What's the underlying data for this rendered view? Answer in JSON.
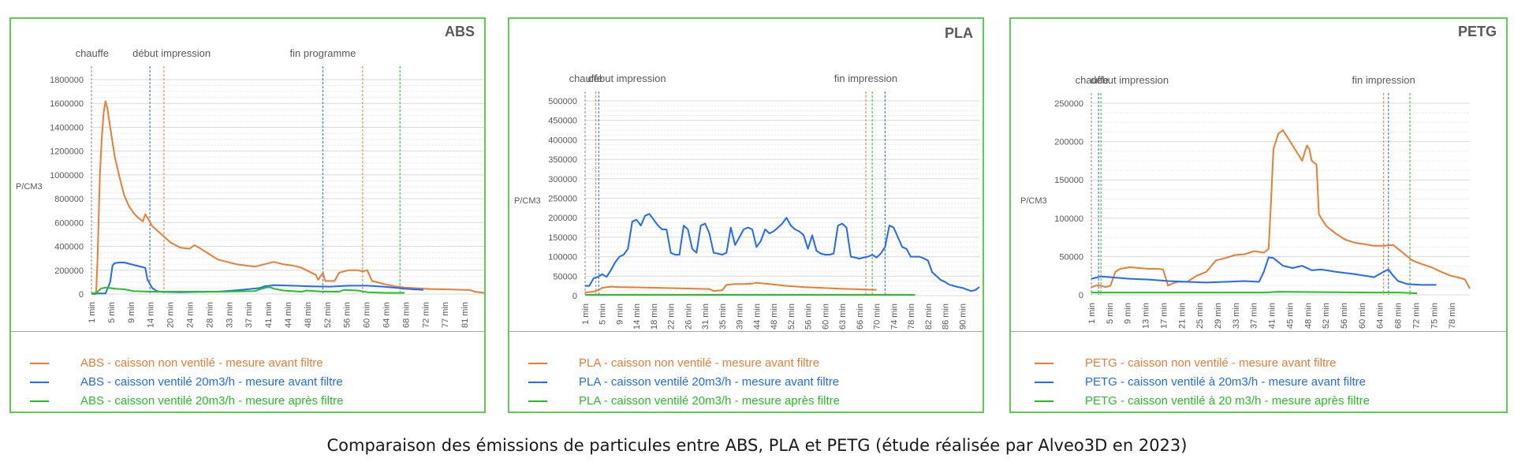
{
  "caption": "Comparaison des émissions de particules entre ABS, PLA et PETG (étude réalisée par Alveo3D en 2023)",
  "colors": {
    "orange": "#ED7D31",
    "blue": "#1F6BFF",
    "green": "#22C422",
    "grey": "#8c8c8c",
    "border": "#5ad14e"
  },
  "panels": [
    {
      "title": "ABS",
      "ylabel": "P/CM3",
      "annotations": [
        "chauffe",
        "début impression",
        "fin programme"
      ],
      "legend": [
        "ABS - caisson non ventilé - mesure avant filtre",
        "ABS - caisson ventilé 20m3/h - mesure avant filtre",
        "ABS - caisson ventilé 20m3/h - mesure après filtre"
      ]
    },
    {
      "title": "PLA",
      "ylabel": "P/CM3",
      "annotations": [
        "chauffe",
        "début impression",
        "fin impression"
      ],
      "legend": [
        "PLA - caisson non ventilé - mesure avant filtre",
        "PLA - caisson ventilé 20m3/h - mesure avant filtre",
        "PLA - caisson ventilé 20m3/h - mesure après filtre"
      ]
    },
    {
      "title": "PETG",
      "ylabel": "P/CM3",
      "annotations": [
        "chauffe",
        "début impression",
        "fin impression"
      ],
      "legend": [
        "PETG - caisson non ventilé - mesure avant filtre",
        "PETG - caisson ventilé à 20m3/h - mesure avant filtre",
        "PETG - caisson ventilé à 20 m3/h - mesure après filtre"
      ]
    }
  ],
  "chart_data": [
    {
      "type": "line",
      "title": "ABS",
      "xlabel": "",
      "ylabel": "P/CM3",
      "ylim": [
        0,
        1800000
      ],
      "yticks": [
        0,
        200000,
        400000,
        600000,
        800000,
        1000000,
        1200000,
        1400000,
        1600000,
        1800000
      ],
      "xticks": [
        "1 min",
        "5 min",
        "9 min",
        "14 min",
        "20 min",
        "24 min",
        "28 min",
        "33 min",
        "37 min",
        "41 min",
        "44 min",
        "48 min",
        "52 min",
        "56 min",
        "60 min",
        "64 min",
        "68 min",
        "72 min",
        "77 min",
        "81 min"
      ],
      "x_range_min": [
        1,
        85
      ],
      "grid": true,
      "legend_position": "bottom",
      "annotations": [
        {
          "label": "chauffe",
          "x": 1,
          "color": "#8c8c8c"
        },
        {
          "label": "début impression",
          "x": 13.5,
          "color": "#1F6BFF"
        },
        {
          "label": "début impression",
          "x": 16.5,
          "color": "#ED7D31"
        },
        {
          "label": "fin programme",
          "x": 50.5,
          "color": "#1F6BFF"
        },
        {
          "label": "fin programme",
          "x": 59,
          "color": "#ED7D31"
        },
        {
          "label": "fin programme",
          "x": 67,
          "color": "#22C422"
        }
      ],
      "series": [
        {
          "name": "ABS - caisson non ventilé - mesure avant filtre",
          "color": "#ED7D31",
          "x": [
            1,
            2,
            2.3,
            2.8,
            3.2,
            3.6,
            4,
            4.4,
            5,
            6,
            7,
            8,
            9,
            10,
            11,
            12,
            12.5,
            13,
            14,
            16,
            18,
            20,
            22,
            23,
            24,
            26,
            28,
            30,
            32,
            34,
            36,
            38,
            40,
            41,
            42,
            44,
            46,
            48,
            49,
            49.5,
            50.5,
            51,
            53,
            54,
            56,
            58,
            59,
            60,
            61,
            62,
            64,
            66,
            68,
            70,
            72,
            74,
            76,
            78,
            80,
            82,
            83,
            85
          ],
          "values": [
            0,
            0,
            300000,
            1000000,
            1300000,
            1520000,
            1620000,
            1560000,
            1400000,
            1150000,
            980000,
            830000,
            740000,
            680000,
            640000,
            610000,
            670000,
            640000,
            570000,
            500000,
            430000,
            390000,
            380000,
            410000,
            390000,
            340000,
            290000,
            270000,
            250000,
            240000,
            230000,
            250000,
            270000,
            260000,
            250000,
            240000,
            220000,
            180000,
            160000,
            120000,
            180000,
            110000,
            110000,
            180000,
            200000,
            200000,
            190000,
            200000,
            110000,
            100000,
            80000,
            65000,
            55000,
            50000,
            45000,
            42000,
            40000,
            38000,
            36000,
            34000,
            20000,
            10000
          ]
        },
        {
          "name": "ABS - caisson ventilé 20m3/h - mesure avant filtre",
          "color": "#1F6BFF",
          "x": [
            1,
            4,
            5,
            5.5,
            6,
            7,
            8,
            9,
            10,
            11,
            12,
            12.5,
            13,
            14,
            15,
            16,
            20,
            28,
            33,
            37,
            38,
            40,
            44,
            48,
            52,
            56,
            60,
            64,
            68,
            72
          ],
          "values": [
            5000,
            5000,
            100000,
            240000,
            260000,
            265000,
            265000,
            255000,
            245000,
            235000,
            225000,
            220000,
            120000,
            50000,
            25000,
            18000,
            15000,
            20000,
            35000,
            50000,
            65000,
            75000,
            70000,
            65000,
            62000,
            70000,
            70000,
            60000,
            45000,
            35000
          ]
        },
        {
          "name": "ABS - caisson ventilé 20m3/h - mesure après filtre",
          "color": "#22C422",
          "x": [
            1,
            2,
            3,
            4,
            5,
            6,
            8,
            10,
            14,
            20,
            28,
            36,
            37,
            38,
            39,
            40,
            42,
            46,
            47,
            50,
            54,
            55,
            58,
            60,
            64,
            68
          ],
          "values": [
            5000,
            10000,
            45000,
            55000,
            50000,
            45000,
            40000,
            25000,
            20000,
            20000,
            20000,
            25000,
            40000,
            50000,
            60000,
            45000,
            30000,
            20000,
            30000,
            22000,
            20000,
            35000,
            30000,
            15000,
            10000,
            10000
          ]
        }
      ]
    },
    {
      "type": "line",
      "title": "PLA",
      "xlabel": "",
      "ylabel": "P/CM3",
      "ylim": [
        0,
        500000
      ],
      "yticks": [
        0,
        50000,
        100000,
        150000,
        200000,
        250000,
        300000,
        350000,
        400000,
        450000,
        500000
      ],
      "xticks": [
        "1 min",
        "5 min",
        "9 min",
        "14 min",
        "18 min",
        "22 min",
        "26 min",
        "31 min",
        "35 min",
        "39 min",
        "44 min",
        "48 min",
        "52 min",
        "56 min",
        "60 min",
        "63 min",
        "66 min",
        "70 min",
        "74 min",
        "78 min",
        "82 min",
        "86 min",
        "90 min"
      ],
      "x_range_min": [
        1,
        93
      ],
      "grid": true,
      "legend_position": "bottom",
      "annotations": [
        {
          "label": "chauffe",
          "x": 1,
          "color": "#8c8c8c"
        },
        {
          "label": "début impression",
          "x": 3.5,
          "color": "#ED7D31"
        },
        {
          "label": "début impression",
          "x": 4.2,
          "color": "#1F6BFF"
        },
        {
          "label": "fin impression",
          "x": 66.5,
          "color": "#ED7D31"
        },
        {
          "label": "fin impression",
          "x": 68,
          "color": "#22C422"
        },
        {
          "label": "fin impression",
          "x": 71,
          "color": "#1F6BFF"
        }
      ],
      "series": [
        {
          "name": "PLA - caisson non ventilé - mesure avant filtre",
          "color": "#ED7D31",
          "x": [
            1,
            3,
            4,
            5,
            7,
            9,
            14,
            18,
            22,
            26,
            30,
            31,
            33,
            34,
            36,
            38,
            40,
            41,
            44,
            48,
            52,
            56,
            60,
            63,
            66,
            69
          ],
          "values": [
            8000,
            10000,
            14000,
            20000,
            23000,
            22000,
            21000,
            20000,
            19000,
            18000,
            17000,
            12000,
            14000,
            28000,
            30000,
            30000,
            31000,
            33000,
            30000,
            25000,
            22000,
            20000,
            18000,
            17000,
            16000,
            15000
          ]
        },
        {
          "name": "PLA - caisson ventilé 20m3/h - mesure avant filtre",
          "color": "#1F6BFF",
          "x": [
            1,
            2,
            3,
            4,
            5,
            6,
            7,
            8,
            9,
            10,
            11,
            12,
            13,
            14,
            15,
            16,
            17,
            18,
            19,
            20,
            21,
            22,
            23,
            24,
            25,
            26,
            27,
            28,
            29,
            30,
            31,
            32,
            33,
            34,
            35,
            36,
            37,
            38,
            39,
            40,
            41,
            42,
            43,
            44,
            45,
            46,
            47,
            48,
            49,
            50,
            51,
            52,
            53,
            54,
            55,
            56,
            57,
            58,
            59,
            60,
            61,
            62,
            63,
            64,
            65,
            66,
            67,
            68,
            69,
            70,
            71,
            72,
            73,
            74,
            75,
            76,
            77,
            78,
            79,
            80,
            81,
            82,
            83,
            84,
            85,
            86,
            87,
            88,
            89,
            90,
            91,
            92,
            93
          ],
          "values": [
            25000,
            25000,
            45000,
            48000,
            55000,
            48000,
            65000,
            85000,
            100000,
            105000,
            120000,
            190000,
            195000,
            180000,
            205000,
            210000,
            195000,
            180000,
            170000,
            170000,
            110000,
            105000,
            105000,
            180000,
            170000,
            120000,
            110000,
            180000,
            185000,
            160000,
            110000,
            108000,
            105000,
            110000,
            175000,
            130000,
            150000,
            170000,
            175000,
            170000,
            125000,
            140000,
            170000,
            160000,
            165000,
            175000,
            185000,
            200000,
            180000,
            170000,
            165000,
            155000,
            120000,
            155000,
            115000,
            108000,
            105000,
            105000,
            108000,
            180000,
            185000,
            175000,
            100000,
            98000,
            95000,
            98000,
            100000,
            105000,
            98000,
            108000,
            125000,
            180000,
            175000,
            150000,
            125000,
            120000,
            100000,
            100000,
            100000,
            96000,
            90000,
            60000,
            50000,
            40000,
            35000,
            28000,
            25000,
            22000,
            20000,
            16000,
            12000,
            14000,
            22000
          ]
        },
        {
          "name": "PLA - caisson ventilé 20m3/h - mesure après filtre",
          "color": "#22C422",
          "x": [
            1,
            10,
            20,
            30,
            40,
            50,
            60,
            70,
            78
          ],
          "values": [
            2000,
            2000,
            2000,
            2000,
            2000,
            2000,
            2000,
            2000,
            2000
          ]
        }
      ]
    },
    {
      "type": "line",
      "title": "PETG",
      "xlabel": "",
      "ylabel": "P/CM3",
      "ylim": [
        0,
        250000
      ],
      "yticks": [
        0,
        50000,
        100000,
        150000,
        200000,
        250000
      ],
      "xticks": [
        "1 min",
        "5 min",
        "9 min",
        "13 min",
        "17 min",
        "21 min",
        "25 min",
        "29 min",
        "33 min",
        "37 min",
        "41 min",
        "45 min",
        "48 min",
        "52 min",
        "56 min",
        "60 min",
        "64 min",
        "68 min",
        "72 min",
        "75 min",
        "78 min"
      ],
      "x_range_min": [
        1,
        80
      ],
      "grid": true,
      "legend_position": "bottom",
      "annotations": [
        {
          "label": "chauffe",
          "x": 1,
          "color": "#8c8c8c"
        },
        {
          "label": "début impression",
          "x": 2.5,
          "color": "#1F6BFF"
        },
        {
          "label": "début impression",
          "x": 3,
          "color": "#22C422"
        },
        {
          "label": "fin impression",
          "x": 62,
          "color": "#ED7D31"
        },
        {
          "label": "fin impression",
          "x": 63,
          "color": "#1F6BFF"
        },
        {
          "label": "fin impression",
          "x": 67.5,
          "color": "#22C422"
        }
      ],
      "series": [
        {
          "name": "PETG - caisson non ventilé - mesure avant filtre",
          "color": "#ED7D31",
          "x": [
            1,
            2,
            3,
            4,
            5,
            6,
            7,
            9,
            11,
            13,
            15,
            16,
            17,
            18,
            19,
            21,
            23,
            25,
            27,
            29,
            31,
            33,
            35,
            37,
            38,
            38.5,
            39,
            40,
            41,
            42,
            43,
            44,
            45,
            46,
            46.5,
            47,
            48,
            48.5,
            49,
            50,
            52,
            54,
            56,
            58,
            60,
            62,
            64,
            66,
            68,
            70,
            72,
            74,
            76,
            78,
            79,
            80
          ],
          "values": [
            10000,
            12000,
            12000,
            10000,
            12000,
            30000,
            34000,
            36000,
            35000,
            34000,
            34000,
            33000,
            12000,
            15000,
            17000,
            17000,
            25000,
            30000,
            45000,
            48000,
            52000,
            53000,
            57000,
            55000,
            60000,
            120000,
            190000,
            210000,
            215000,
            205000,
            195000,
            185000,
            175000,
            195000,
            190000,
            175000,
            170000,
            105000,
            100000,
            90000,
            80000,
            72000,
            68000,
            66000,
            64000,
            64000,
            65000,
            55000,
            45000,
            40000,
            36000,
            30000,
            25000,
            22000,
            20000,
            8000
          ]
        },
        {
          "name": "PETG - caisson ventilé à 20m3/h - mesure avant filtre",
          "color": "#1F6BFF",
          "x": [
            1,
            3,
            5,
            9,
            13,
            17,
            21,
            25,
            29,
            33,
            36,
            37,
            38,
            39,
            41,
            43,
            45,
            47,
            49,
            52,
            56,
            60,
            62,
            63,
            64,
            65,
            67,
            70,
            72,
            73
          ],
          "values": [
            21000,
            24000,
            23000,
            21000,
            20000,
            18000,
            17000,
            16000,
            17000,
            18000,
            17000,
            30000,
            49000,
            48000,
            38000,
            35000,
            38000,
            32000,
            33000,
            30000,
            27000,
            23000,
            30000,
            33000,
            25000,
            18000,
            14000,
            13000,
            13000,
            13000
          ]
        },
        {
          "name": "PETG - caisson ventilé à 20 m3/h - mesure après filtre",
          "color": "#22C422",
          "x": [
            1,
            10,
            20,
            30,
            37,
            40,
            50,
            60,
            65,
            69
          ],
          "values": [
            3000,
            3000,
            3000,
            3000,
            3000,
            4000,
            3500,
            3000,
            3000,
            2000
          ]
        }
      ]
    }
  ]
}
